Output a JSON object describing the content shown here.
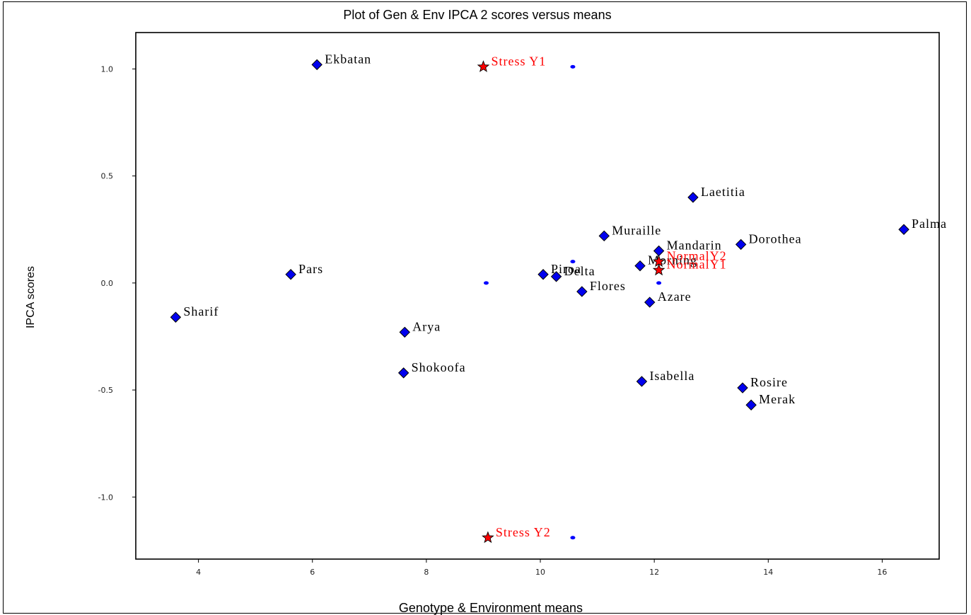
{
  "chart_data": {
    "type": "scatter",
    "title": "Plot of Gen & Env IPCA 2 scores versus means",
    "xlabel": "Genotype & Environment means",
    "ylabel": "IPCA scores",
    "xlim": [
      2.9,
      17.0
    ],
    "ylim": [
      -1.29,
      1.17
    ],
    "xticks": [
      4,
      6,
      8,
      10,
      12,
      14,
      16
    ],
    "xtick_labels": [
      "4",
      "6",
      "8",
      "10",
      "12",
      "14",
      "16"
    ],
    "yticks": [
      1.0,
      0.5,
      0.0,
      -0.5,
      -1.0
    ],
    "ytick_labels": [
      "1.0",
      "0.5",
      "0.0",
      "-0.5",
      "-1.0"
    ],
    "colors": {
      "genotype": "#0000ee",
      "environment": "#ff0000",
      "small_dot": "#0000ff"
    },
    "genotypes": [
      {
        "name": "Ekbatan",
        "x": 6.08,
        "y": 1.02
      },
      {
        "name": "Laetitia",
        "x": 12.68,
        "y": 0.4
      },
      {
        "name": "Palma",
        "x": 16.38,
        "y": 0.25
      },
      {
        "name": "Muraille",
        "x": 11.12,
        "y": 0.22
      },
      {
        "name": "Dorothea",
        "x": 13.52,
        "y": 0.18
      },
      {
        "name": "Mandarin",
        "x": 12.08,
        "y": 0.15
      },
      {
        "name": "Morning",
        "x": 11.75,
        "y": 0.08
      },
      {
        "name": "Pars",
        "x": 5.62,
        "y": 0.04
      },
      {
        "name": "Piroa",
        "x": 10.05,
        "y": 0.04
      },
      {
        "name": "Delta",
        "x": 10.28,
        "y": 0.03
      },
      {
        "name": "Flores",
        "x": 10.73,
        "y": -0.04
      },
      {
        "name": "Azare",
        "x": 11.92,
        "y": -0.09
      },
      {
        "name": "Sharif",
        "x": 3.6,
        "y": -0.16
      },
      {
        "name": "Arya",
        "x": 7.62,
        "y": -0.23
      },
      {
        "name": "Shokoofa",
        "x": 7.6,
        "y": -0.42
      },
      {
        "name": "Isabella",
        "x": 11.78,
        "y": -0.46
      },
      {
        "name": "Rosire",
        "x": 13.55,
        "y": -0.49
      },
      {
        "name": "Merak",
        "x": 13.7,
        "y": -0.57
      }
    ],
    "environments": [
      {
        "name": "Stress Y1",
        "x": 9.0,
        "y": 1.01
      },
      {
        "name": "NormalY2",
        "x": 12.08,
        "y": 0.1
      },
      {
        "name": "NormalY1",
        "x": 12.08,
        "y": 0.06
      },
      {
        "name": "Stress Y2",
        "x": 9.08,
        "y": -1.19
      }
    ],
    "small_dots": [
      {
        "x": 10.57,
        "y": 1.01
      },
      {
        "x": 10.57,
        "y": 0.1
      },
      {
        "x": 9.05,
        "y": 0.0
      },
      {
        "x": 12.08,
        "y": 0.0
      },
      {
        "x": 10.57,
        "y": -1.19
      }
    ]
  }
}
